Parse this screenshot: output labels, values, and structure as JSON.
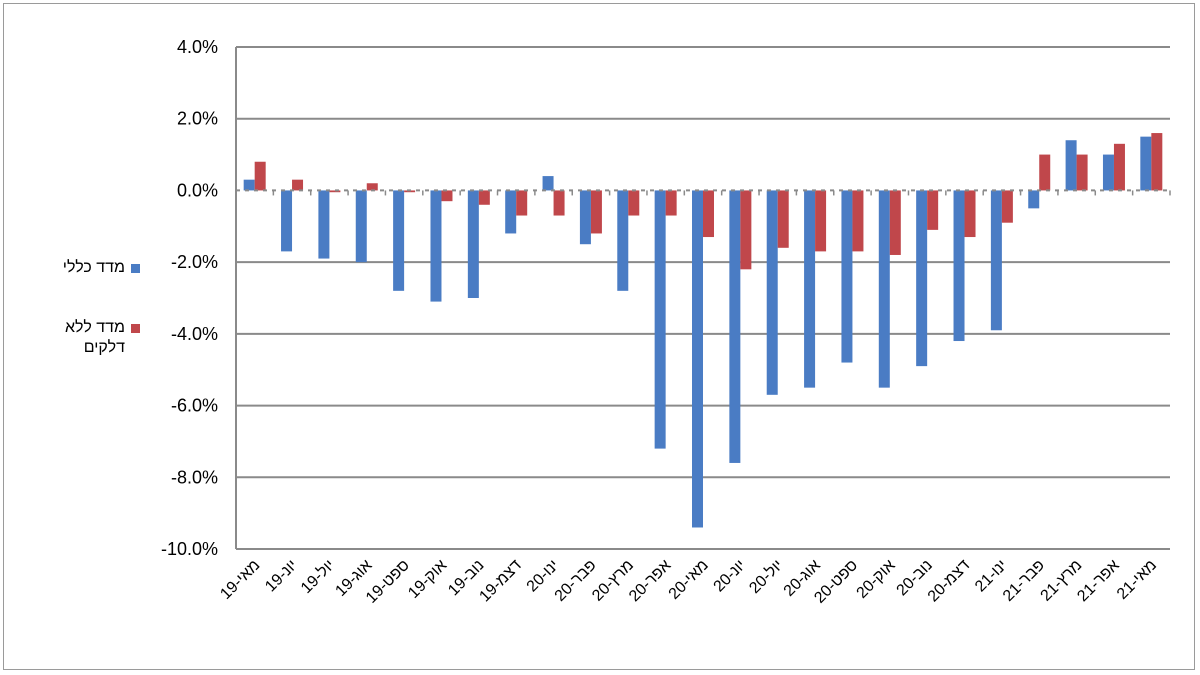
{
  "chart_data": {
    "type": "bar",
    "categories": [
      "מאי-19",
      "יונ-19",
      "יול-19",
      "אוג-19",
      "ספט-19",
      "אוק-19",
      "נוב-19",
      "דצמ-19",
      "ינו-20",
      "פבר-20",
      "מרץ-20",
      "אפר-20",
      "מאי-20",
      "יונ-20",
      "יול-20",
      "אוג-20",
      "ספט-20",
      "אוק-20",
      "נוב-20",
      "דצמ-20",
      "ינו-21",
      "פבר-21",
      "מרץ-21",
      "אפר-21",
      "מאי-21"
    ],
    "series": [
      {
        "name": "מדד כללי",
        "color": "#4a7cc4",
        "values": [
          0.3,
          -1.7,
          -1.9,
          -2.0,
          -2.8,
          -3.1,
          -3.0,
          -1.2,
          0.4,
          -1.5,
          -2.8,
          -7.2,
          -9.4,
          -7.6,
          -5.7,
          -5.5,
          -4.8,
          -5.5,
          -4.9,
          -4.2,
          -3.9,
          -0.5,
          1.4,
          1.0,
          1.5
        ]
      },
      {
        "name": "מדד ללא דלקים",
        "color": "#c0474b",
        "values": [
          0.8,
          0.3,
          -0.05,
          0.2,
          -0.05,
          -0.3,
          -0.4,
          -0.7,
          -0.7,
          -1.2,
          -0.7,
          -0.7,
          -1.3,
          -2.2,
          -1.6,
          -1.7,
          -1.7,
          -1.8,
          -1.1,
          -1.3,
          -0.9,
          1.0,
          1.0,
          1.3,
          1.6
        ]
      }
    ],
    "yticks": [
      "4.0%",
      "2.0%",
      "0.0%",
      "-2.0%",
      "-4.0%",
      "-6.0%",
      "-8.0%",
      "-10.0%"
    ],
    "ylim": [
      -10,
      4
    ],
    "grid": true,
    "legend_position": "left"
  }
}
